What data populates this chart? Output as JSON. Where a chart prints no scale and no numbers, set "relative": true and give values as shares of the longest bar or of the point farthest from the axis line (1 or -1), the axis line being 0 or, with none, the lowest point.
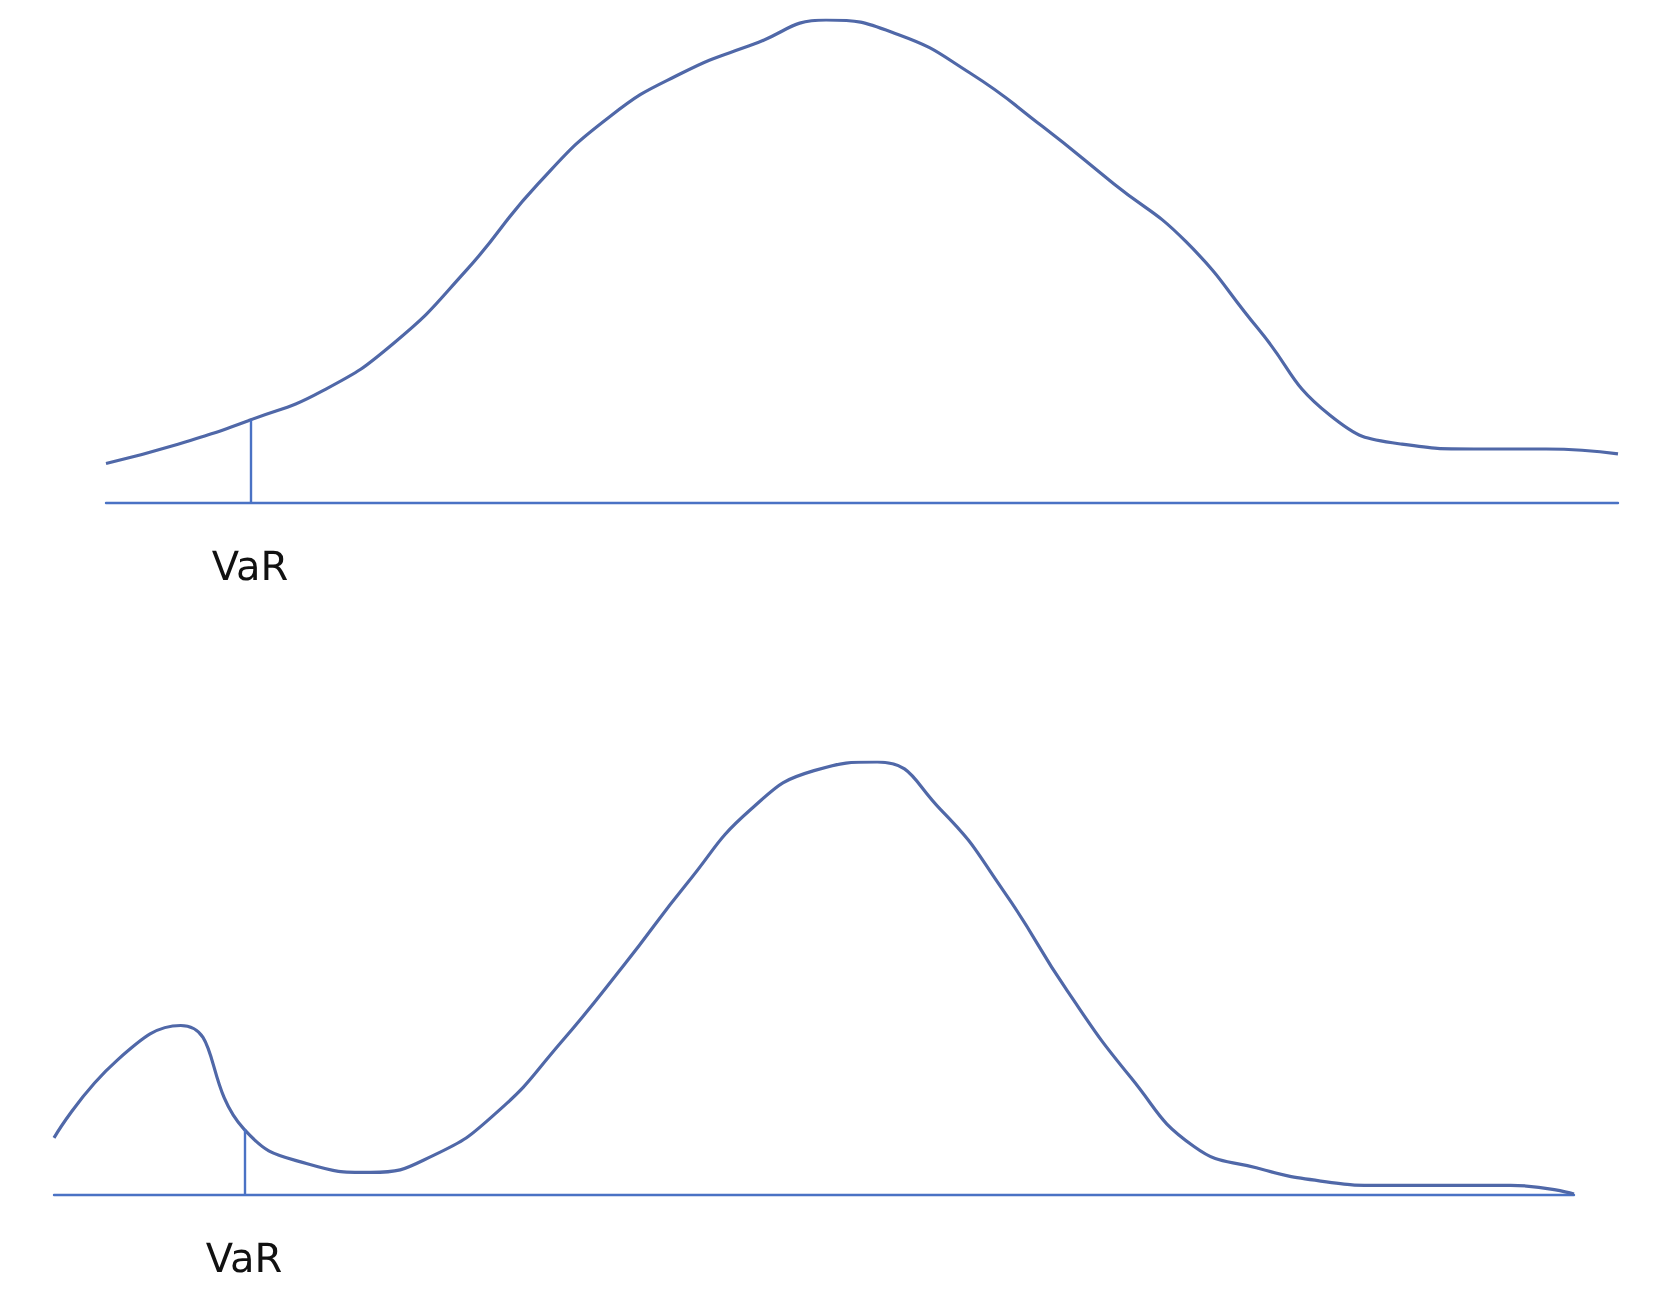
{
  "chart_data": [
    {
      "type": "line",
      "relative": true,
      "marker": "none",
      "categories": [
        null,
        null,
        null,
        null,
        null,
        null,
        null,
        null,
        null,
        null,
        null,
        null,
        null,
        null,
        null,
        null,
        null,
        null,
        null,
        null,
        null,
        null
      ],
      "series": [
        {
          "color": "#5068a8",
          "values": [
            0.08,
            0.12,
            0.17,
            0.23,
            0.33,
            0.48,
            0.66,
            0.8,
            0.89,
            0.95,
            1,
            0.97,
            0.89,
            0.78,
            0.66,
            0.54,
            0.36,
            0.18,
            0.12,
            0.11,
            0.11,
            0.1
          ]
        }
      ],
      "annotations": [
        {
          "text": "VaR",
          "y": 0.17
        }
      ]
    },
    {
      "type": "line",
      "relative": true,
      "marker": "none",
      "categories": [
        null,
        null,
        null,
        null,
        null,
        null,
        null,
        null,
        null,
        null,
        null,
        null,
        null,
        null,
        null,
        null,
        null,
        null,
        null,
        null,
        null,
        null,
        null,
        null,
        null
      ],
      "series": [
        {
          "color": "#5068a8",
          "values": [
            0.13,
            0.31,
            0.39,
            0.15,
            0.07,
            0.05,
            0.09,
            0.19,
            0.35,
            0.53,
            0.72,
            0.89,
            0.98,
            1,
            0.89,
            0.7,
            0.47,
            0.27,
            0.11,
            0.06,
            0.03,
            0.02,
            0.02,
            0.02,
            0
          ]
        }
      ],
      "annotations": [
        {
          "text": "VaR",
          "y": 0.15
        }
      ]
    }
  ]
}
